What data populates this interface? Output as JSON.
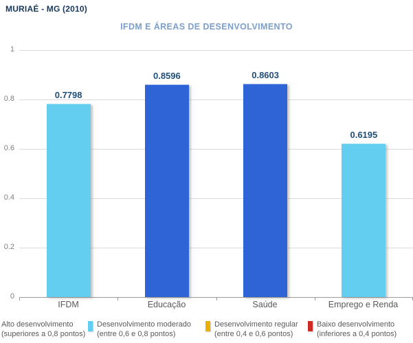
{
  "header": {
    "title": "MURIAÉ - MG (2010)"
  },
  "chart_data": {
    "type": "bar",
    "title": "IFDM E ÁREAS DE DESENVOLVIMENTO",
    "categories": [
      "IFDM",
      "Educação",
      "Saúde",
      "Emprego e Renda"
    ],
    "values": [
      0.7798,
      0.8596,
      0.8603,
      0.6195
    ],
    "value_labels": [
      "0.7798",
      "0.8596",
      "0.8603",
      "0.6195"
    ],
    "bar_colors": [
      "#63CEF0",
      "#2F64D7",
      "#2F64D7",
      "#63CEF0"
    ],
    "ylim": [
      0,
      1
    ],
    "ytick_labels": [
      "1",
      "0.8",
      "0.6",
      "0.4",
      "0.2",
      "0"
    ],
    "grid": true,
    "legend_position": "bottom",
    "legend": [
      {
        "line1": "Alto desenvolvimento",
        "line2": "(superiores a 0,8 pontos)",
        "color": "#2F64D7"
      },
      {
        "line1": "Desenvolvimento moderado",
        "line2": "(entre 0,6 e 0,8 pontos)",
        "color": "#63CEF0"
      },
      {
        "line1": "Desenvolvimento regular",
        "line2": "(entre 0,4 e 0,6 pontos)",
        "color": "#E9B000"
      },
      {
        "line1": "Baixo desenvolvimento",
        "line2": "(inferiores a 0,4 pontos)",
        "color": "#CE2B26"
      }
    ]
  },
  "colors": {
    "header_text": "#17375D",
    "chart_title": "#7C9FC9",
    "value_label": "#1F4E79",
    "axis_label": "#808080",
    "category_label": "#595959",
    "legend_text": "#595959",
    "gridline": "#D9D9D9",
    "baseline": "#999999"
  }
}
